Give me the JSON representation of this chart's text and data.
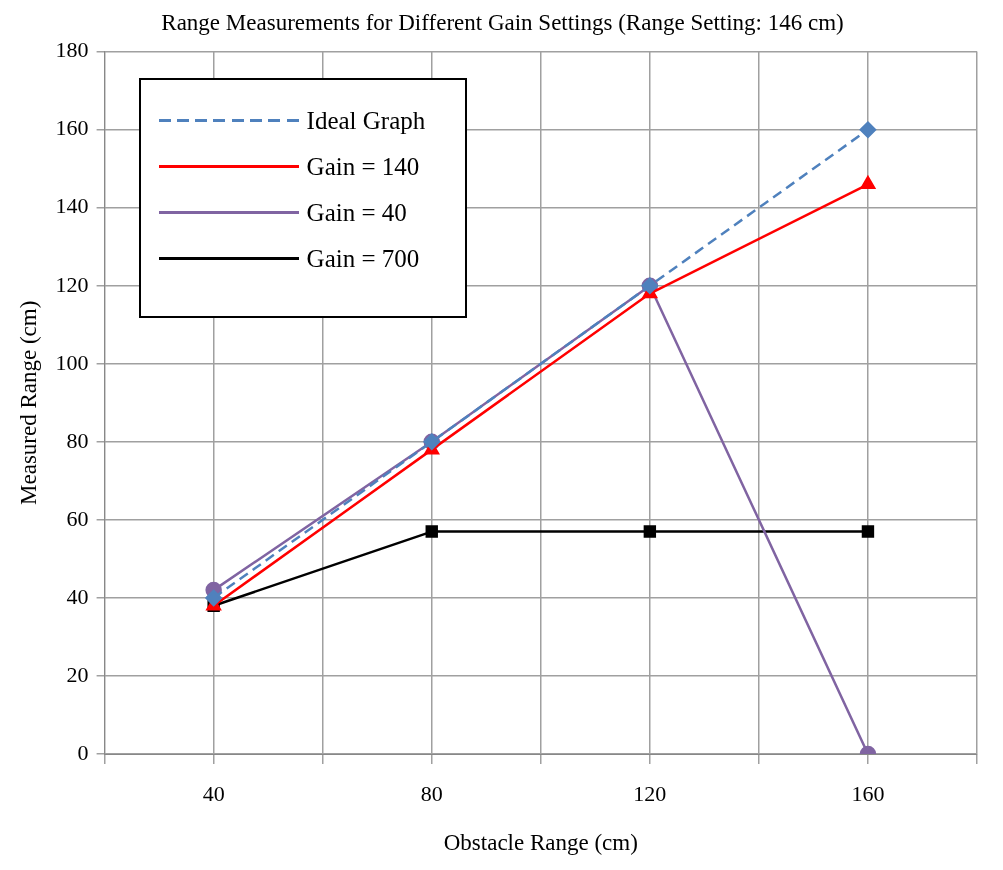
{
  "chart_data": {
    "type": "line",
    "title": "Range Measurements for Different Gain Settings (Range Setting: 146 cm)",
    "xlabel": "Obstacle Range (cm)",
    "ylabel": "Measured Range (cm)",
    "x": [
      40,
      80,
      120,
      160
    ],
    "xlim": [
      20,
      180
    ],
    "xticks": [
      {
        "value": 20,
        "label": null
      },
      40,
      {
        "value": 60,
        "label": null
      },
      80,
      {
        "value": 100,
        "label": null
      },
      120,
      {
        "value": 140,
        "label": null
      },
      160,
      {
        "value": 180,
        "label": null
      }
    ],
    "ylim": [
      0,
      180
    ],
    "yticks": [
      0,
      20,
      40,
      60,
      80,
      100,
      120,
      140,
      160,
      180
    ],
    "grid": true,
    "legend": "top left",
    "series": [
      {
        "name": "Ideal Graph",
        "color": "#4f81bd",
        "values": [
          40,
          80,
          120,
          160
        ],
        "line_style": "dashed",
        "marker": "diamond"
      },
      {
        "name": "Gain = 140",
        "color": "#ff0000",
        "values": [
          38,
          78,
          118,
          146
        ],
        "line_style": "solid",
        "marker": "triangle"
      },
      {
        "name": "Gain = 40",
        "color": "#8064a2",
        "values": [
          42,
          80,
          120,
          0
        ],
        "line_style": "solid",
        "marker": "circle"
      },
      {
        "name": "Gain = 700",
        "color": "#000000",
        "values": [
          38,
          57,
          57,
          57
        ],
        "line_style": "solid",
        "marker": "square"
      }
    ]
  }
}
